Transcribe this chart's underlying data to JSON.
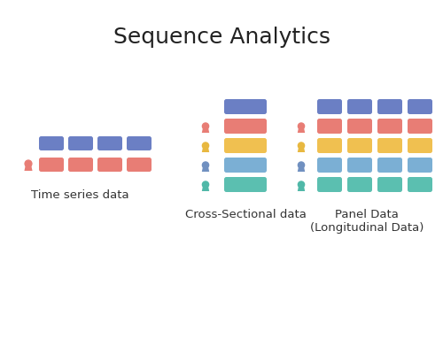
{
  "title": "Sequence Analytics",
  "background_color": "#ffffff",
  "colors": {
    "blue": "#6b7fc4",
    "red": "#e87d75",
    "yellow": "#f0c050",
    "blue2": "#7bafd4",
    "teal": "#5bbfb0"
  },
  "person_colors": {
    "red": "#e87d75",
    "yellow": "#e8b840",
    "blue": "#7090c0",
    "teal": "#50b8a8"
  },
  "labels": {
    "time_series": "Time series data",
    "cross_sectional": "Cross-Sectional data",
    "panel": "Panel Data\n(Longitudinal Data)"
  },
  "title_fontsize": 18,
  "label_fontsize": 9.5
}
